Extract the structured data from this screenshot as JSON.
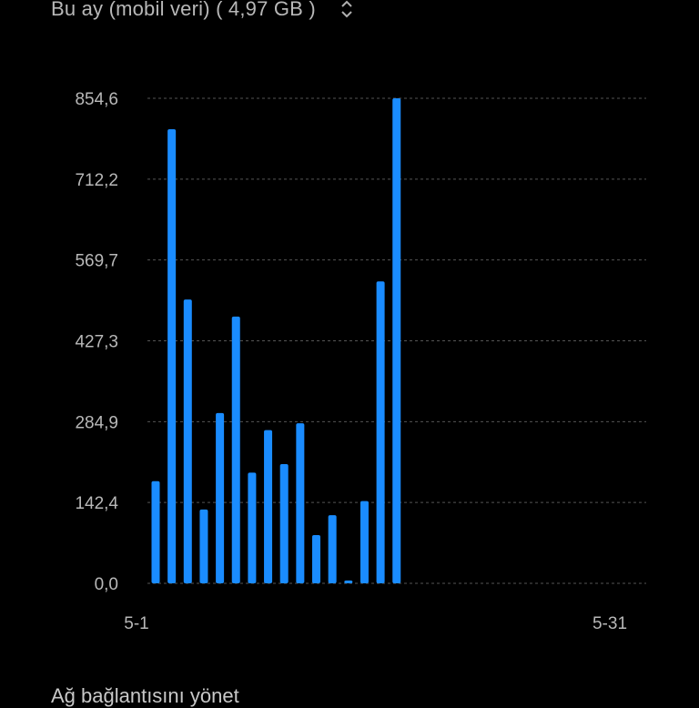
{
  "header": {
    "period_label": "Bu ay (mobil veri) ( 4,97 GB )",
    "icon": "chevron-up-down-icon"
  },
  "chart_data": {
    "type": "bar",
    "unit": "",
    "ylim": [
      0,
      854.6
    ],
    "y_ticks": [
      "854,6",
      "712,2",
      "569,7",
      "427,3",
      "284,9",
      "142,4",
      "0,0"
    ],
    "y_tick_values": [
      854.6,
      712.2,
      569.7,
      427.3,
      284.9,
      142.4,
      0
    ],
    "x_labels": [
      "5-1",
      "5-31"
    ],
    "days": 31,
    "values": [
      180,
      800,
      500,
      130,
      300,
      470,
      195,
      270,
      210,
      282,
      85,
      120,
      5,
      145,
      532,
      854.6,
      null,
      null,
      null,
      null,
      null,
      null,
      null,
      null,
      null,
      null,
      null,
      null,
      null,
      null,
      null
    ],
    "bar_color": "#1a8cff",
    "grid": true
  },
  "footer": {
    "link_label": "Ağ bağlantısını yönet"
  }
}
